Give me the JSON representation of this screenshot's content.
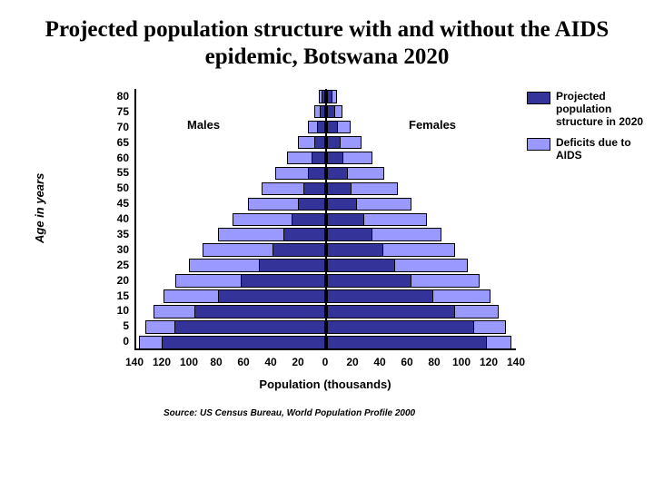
{
  "title": "Projected population structure with and without the AIDS epidemic, Botswana 2020",
  "y_axis": {
    "label": "Age in years"
  },
  "x_axis": {
    "label": "Population (thousands)",
    "max": 140,
    "ticks": [
      140,
      120,
      100,
      80,
      60,
      40,
      20,
      0,
      20,
      40,
      60,
      80,
      100,
      120,
      140
    ]
  },
  "in_plot_labels": {
    "males": "Males",
    "females": "Females"
  },
  "legend": {
    "projected": "Projected population structure in 2020",
    "deficit": "Deficits due to AIDS"
  },
  "colors": {
    "projected": "#333399",
    "deficit": "#9999ff",
    "border": "#000000",
    "background": "#ffffff"
  },
  "source": "Source: US Census Bureau, World Population Profile 2000",
  "pyramid": {
    "age_labels": [
      "80",
      "75",
      "70",
      "65",
      "60",
      "55",
      "50",
      "45",
      "40",
      "35",
      "30",
      "25",
      "20",
      "15",
      "10",
      "5",
      "0"
    ],
    "rows": [
      {
        "age": 80,
        "male_proj": 3,
        "male_tot": 5,
        "fem_proj": 4,
        "fem_tot": 7
      },
      {
        "age": 75,
        "male_proj": 4,
        "male_tot": 8,
        "fem_proj": 6,
        "fem_tot": 11
      },
      {
        "age": 70,
        "male_proj": 6,
        "male_tot": 13,
        "fem_proj": 8,
        "fem_tot": 17
      },
      {
        "age": 65,
        "male_proj": 8,
        "male_tot": 20,
        "fem_proj": 10,
        "fem_tot": 25
      },
      {
        "age": 60,
        "male_proj": 10,
        "male_tot": 28,
        "fem_proj": 12,
        "fem_tot": 33
      },
      {
        "age": 55,
        "male_proj": 13,
        "male_tot": 37,
        "fem_proj": 15,
        "fem_tot": 42
      },
      {
        "age": 50,
        "male_proj": 16,
        "male_tot": 47,
        "fem_proj": 18,
        "fem_tot": 52
      },
      {
        "age": 45,
        "male_proj": 20,
        "male_tot": 57,
        "fem_proj": 22,
        "fem_tot": 62
      },
      {
        "age": 40,
        "male_proj": 25,
        "male_tot": 68,
        "fem_proj": 27,
        "fem_tot": 73
      },
      {
        "age": 35,
        "male_proj": 31,
        "male_tot": 79,
        "fem_proj": 33,
        "fem_tot": 84
      },
      {
        "age": 30,
        "male_proj": 39,
        "male_tot": 90,
        "fem_proj": 41,
        "fem_tot": 94
      },
      {
        "age": 25,
        "male_proj": 49,
        "male_tot": 100,
        "fem_proj": 50,
        "fem_tot": 103
      },
      {
        "age": 20,
        "male_proj": 62,
        "male_tot": 110,
        "fem_proj": 62,
        "fem_tot": 112
      },
      {
        "age": 15,
        "male_proj": 79,
        "male_tot": 119,
        "fem_proj": 78,
        "fem_tot": 120
      },
      {
        "age": 10,
        "male_proj": 96,
        "male_tot": 126,
        "fem_proj": 94,
        "fem_tot": 126
      },
      {
        "age": 5,
        "male_proj": 111,
        "male_tot": 132,
        "fem_proj": 108,
        "fem_tot": 131
      },
      {
        "age": 0,
        "male_proj": 120,
        "male_tot": 137,
        "fem_proj": 117,
        "fem_tot": 135
      }
    ]
  }
}
